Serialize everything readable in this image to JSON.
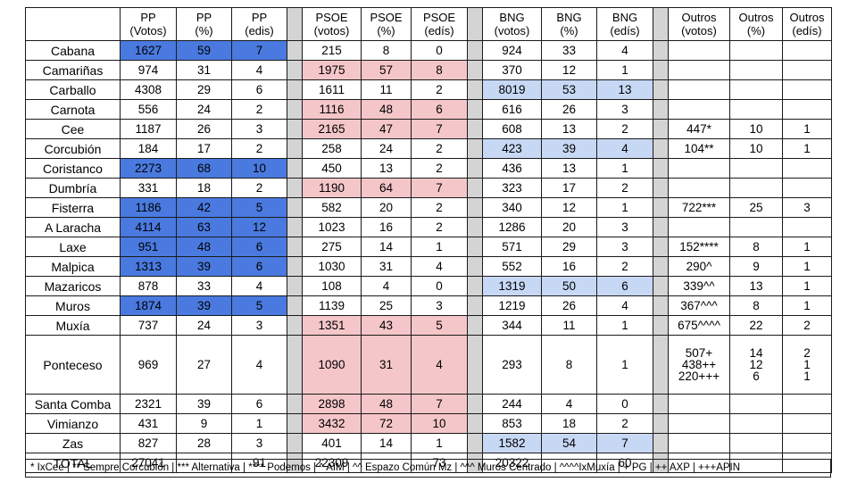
{
  "headers": [
    [
      "PP",
      "(Votos)"
    ],
    [
      "PP",
      "(%)"
    ],
    [
      "PP",
      "(edis)"
    ],
    [
      "PSOE",
      "(votos)"
    ],
    [
      "PSOE",
      "(%)"
    ],
    [
      "PSOE",
      "(edís)"
    ],
    [
      "BNG",
      "(votos)"
    ],
    [
      "BNG",
      "(%)"
    ],
    [
      "BNG",
      "(edís)"
    ],
    [
      "Outros",
      "(votos)"
    ],
    [
      "Outros",
      "(%)"
    ],
    [
      "Outros",
      "(edís)"
    ]
  ],
  "rows": [
    {
      "municipality": "Cabana",
      "win": "pp",
      "pp": [
        "1627",
        "59",
        "7"
      ],
      "psoe": [
        "215",
        "8",
        "0"
      ],
      "bng": [
        "924",
        "33",
        "4"
      ],
      "outros": [
        "",
        "",
        ""
      ]
    },
    {
      "municipality": "Camariñas",
      "win": "psoe",
      "pp": [
        "974",
        "31",
        "4"
      ],
      "psoe": [
        "1975",
        "57",
        "8"
      ],
      "bng": [
        "370",
        "12",
        "1"
      ],
      "outros": [
        "",
        "",
        ""
      ]
    },
    {
      "municipality": "Carballo",
      "win": "bng",
      "pp": [
        "4308",
        "29",
        "6"
      ],
      "psoe": [
        "1611",
        "11",
        "2"
      ],
      "bng": [
        "8019",
        "53",
        "13"
      ],
      "outros": [
        "",
        "",
        ""
      ]
    },
    {
      "municipality": "Carnota",
      "win": "psoe",
      "pp": [
        "556",
        "24",
        "2"
      ],
      "psoe": [
        "1116",
        "48",
        "6"
      ],
      "bng": [
        "616",
        "26",
        "3"
      ],
      "outros": [
        "",
        "",
        ""
      ]
    },
    {
      "municipality": "Cee",
      "win": "psoe",
      "pp": [
        "1187",
        "26",
        "3"
      ],
      "psoe": [
        "2165",
        "47",
        "7"
      ],
      "bng": [
        "608",
        "13",
        "2"
      ],
      "outros": [
        "447*",
        "10",
        "1"
      ]
    },
    {
      "municipality": "Corcubión",
      "win": "bng",
      "pp": [
        "184",
        "17",
        "2"
      ],
      "psoe": [
        "258",
        "24",
        "2"
      ],
      "bng": [
        "423",
        "39",
        "4"
      ],
      "outros": [
        "104**",
        "10",
        "1"
      ]
    },
    {
      "municipality": "Coristanco",
      "win": "pp",
      "pp": [
        "2273",
        "68",
        "10"
      ],
      "psoe": [
        "450",
        "13",
        "2"
      ],
      "bng": [
        "436",
        "13",
        "1"
      ],
      "outros": [
        "",
        "",
        ""
      ]
    },
    {
      "municipality": "Dumbría",
      "win": "psoe",
      "pp": [
        "331",
        "18",
        "2"
      ],
      "psoe": [
        "1190",
        "64",
        "7"
      ],
      "bng": [
        "323",
        "17",
        "2"
      ],
      "outros": [
        "",
        "",
        ""
      ]
    },
    {
      "municipality": "Fisterra",
      "win": "pp",
      "pp": [
        "1186",
        "42",
        "5"
      ],
      "psoe": [
        "582",
        "20",
        "2"
      ],
      "bng": [
        "340",
        "12",
        "1"
      ],
      "outros": [
        "722***",
        "25",
        "3"
      ]
    },
    {
      "municipality": "A Laracha",
      "win": "pp",
      "pp": [
        "4114",
        "63",
        "12"
      ],
      "psoe": [
        "1023",
        "16",
        "2"
      ],
      "bng": [
        "1286",
        "20",
        "3"
      ],
      "outros": [
        "",
        "",
        ""
      ]
    },
    {
      "municipality": "Laxe",
      "win": "pp",
      "pp": [
        "951",
        "48",
        "6"
      ],
      "psoe": [
        "275",
        "14",
        "1"
      ],
      "bng": [
        "571",
        "29",
        "3"
      ],
      "outros": [
        "152****",
        "8",
        "1"
      ]
    },
    {
      "municipality": "Malpica",
      "win": "pp",
      "pp": [
        "1313",
        "39",
        "6"
      ],
      "psoe": [
        "1030",
        "31",
        "4"
      ],
      "bng": [
        "552",
        "16",
        "2"
      ],
      "outros": [
        "290^",
        "9",
        "1"
      ]
    },
    {
      "municipality": "Mazaricos",
      "win": "bng",
      "pp": [
        "878",
        "33",
        "4"
      ],
      "psoe": [
        "108",
        "4",
        "0"
      ],
      "bng": [
        "1319",
        "50",
        "6"
      ],
      "outros": [
        "339^^",
        "13",
        "1"
      ]
    },
    {
      "municipality": "Muros",
      "win": "pp",
      "pp": [
        "1874",
        "39",
        "5"
      ],
      "psoe": [
        "1139",
        "25",
        "3"
      ],
      "bng": [
        "1219",
        "26",
        "4"
      ],
      "outros": [
        "367^^^",
        "8",
        "1"
      ]
    },
    {
      "municipality": "Muxía",
      "win": "psoe",
      "pp": [
        "737",
        "24",
        "3"
      ],
      "psoe": [
        "1351",
        "43",
        "5"
      ],
      "bng": [
        "344",
        "11",
        "1"
      ],
      "outros": [
        "675^^^^",
        "22",
        "2"
      ]
    },
    {
      "municipality": "Ponteceso",
      "win": "psoe",
      "tall": true,
      "pp": [
        "969",
        "27",
        "4"
      ],
      "psoe": [
        "1090",
        "31",
        "4"
      ],
      "bng": [
        "293",
        "8",
        "1"
      ],
      "outros": [
        "507+\n438++\n220+++",
        "14\n12\n6",
        "2\n1\n1"
      ]
    },
    {
      "municipality": "Santa Comba",
      "win": "psoe",
      "pp": [
        "2321",
        "39",
        "6"
      ],
      "psoe": [
        "2898",
        "48",
        "7"
      ],
      "bng": [
        "244",
        "4",
        "0"
      ],
      "outros": [
        "",
        "",
        ""
      ]
    },
    {
      "municipality": "Vimianzo",
      "win": "psoe",
      "pp": [
        "431",
        "9",
        "1"
      ],
      "psoe": [
        "3432",
        "72",
        "10"
      ],
      "bng": [
        "853",
        "18",
        "2"
      ],
      "outros": [
        "",
        "",
        ""
      ]
    },
    {
      "municipality": "Zas",
      "win": "bng",
      "pp": [
        "827",
        "28",
        "3"
      ],
      "psoe": [
        "401",
        "14",
        "1"
      ],
      "bng": [
        "1582",
        "54",
        "7"
      ],
      "outros": [
        "",
        "",
        ""
      ]
    },
    {
      "municipality": "TOTAL",
      "win": "",
      "pp": [
        "27041",
        "",
        "91"
      ],
      "psoe": [
        "22309",
        "",
        "73"
      ],
      "bng": [
        "20322",
        "",
        "60"
      ],
      "outros": [
        "",
        "",
        ""
      ]
    }
  ],
  "footnote": "* IxCee | ** Sempre Corcubión | *** Alternativa | **** Podemos | ^ AIM | ^^ Espazo Común Mz |  ^^^ Muros Centrado | ^^^^IxMuxía | + PG | ++ AXP | +++APIN",
  "colors": {
    "pp_win": "#4a7ae0",
    "psoe_win": "#f5c6c9",
    "bng_win": "#c7d8f5",
    "separator": "#d4d4d4"
  }
}
